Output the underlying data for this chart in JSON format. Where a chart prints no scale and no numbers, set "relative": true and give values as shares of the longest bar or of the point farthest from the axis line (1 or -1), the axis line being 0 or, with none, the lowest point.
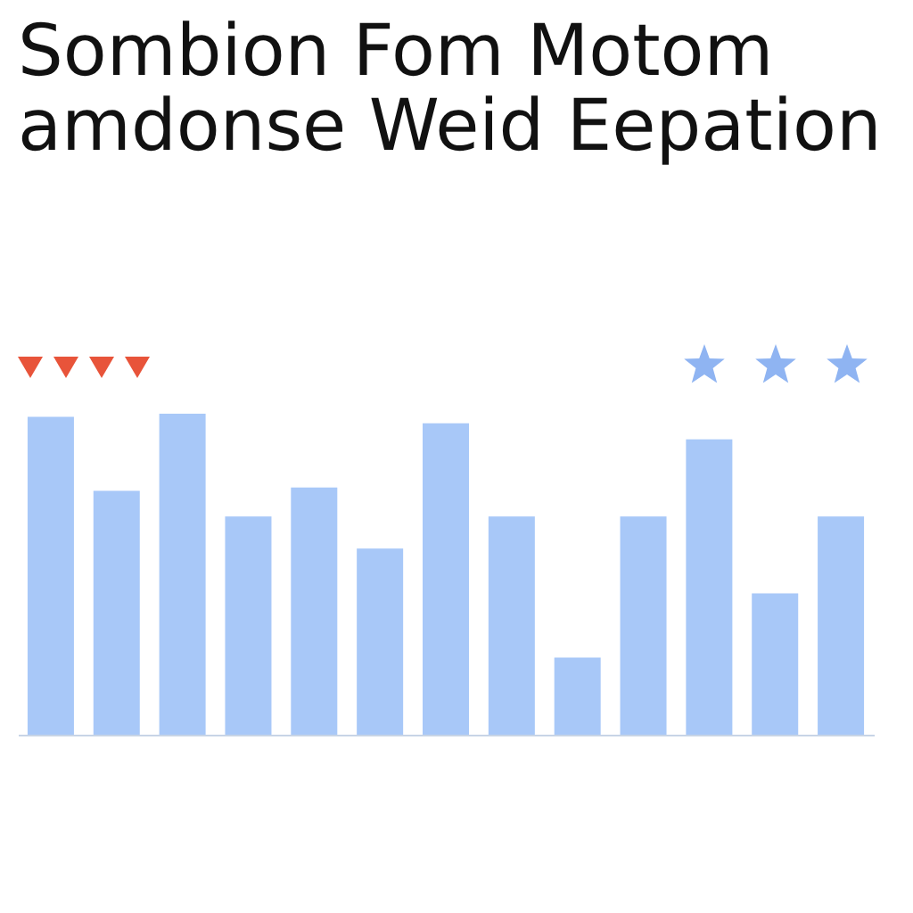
{
  "chart_data": {
    "type": "bar",
    "title": [
      "Sombion Fom Motom",
      "amdonse Weid Eepation"
    ],
    "relative": true,
    "categories": [
      null,
      null,
      null,
      null,
      null,
      null,
      null,
      null,
      null,
      null,
      null,
      null,
      null
    ],
    "values": [
      0.99,
      0.76,
      1,
      0.68,
      0.77,
      0.58,
      0.97,
      0.68,
      0.24,
      0.68,
      0.92,
      0.44,
      0.68
    ],
    "color": "#a8c8f8"
  }
}
